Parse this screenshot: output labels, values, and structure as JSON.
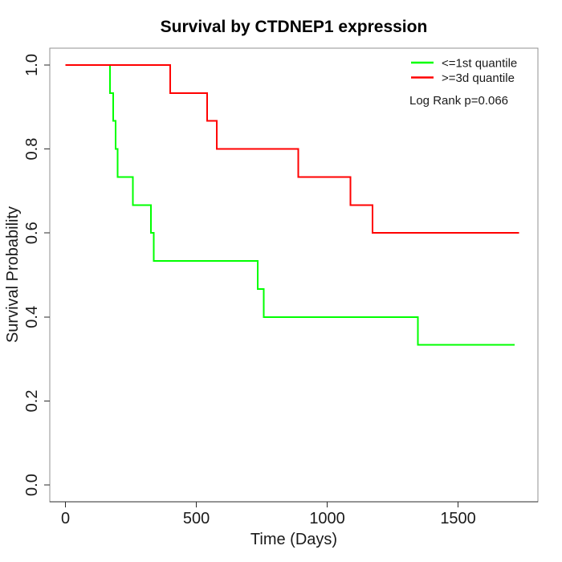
{
  "page": {
    "background": "#FFFFFF"
  },
  "chart_data": {
    "type": "line",
    "subtype": "kaplan_meier_step",
    "title": "Survival by CTDNEP1 expression",
    "xlabel": "Time (Days)",
    "ylabel": "Survival Probability",
    "annotation": "Log Rank p=0.066",
    "legend_position": "top-right",
    "axes": {
      "xticks": [
        0,
        500,
        1000,
        1500
      ],
      "xticklabels": [
        "0",
        "500",
        "1000",
        "1500"
      ],
      "yticks": [
        0.0,
        0.2,
        0.4,
        0.6,
        0.8,
        1.0
      ],
      "yticklabels": [
        "0.0",
        "0.2",
        "0.4",
        "0.6",
        "0.8",
        "1.0"
      ],
      "xlim": [
        0,
        1733
      ],
      "ylim": [
        0,
        1
      ],
      "xlim_display": [
        -60,
        1805
      ],
      "ylim_display": [
        -0.04,
        1.04
      ],
      "grid": false,
      "box_color": "#909090",
      "axis_line_color": "#2a2a2a"
    },
    "series": [
      {
        "name": "<=1st quantile",
        "color": "#00FF00",
        "points": [
          [
            0,
            1.0
          ],
          [
            170,
            0.9333
          ],
          [
            183,
            0.8667
          ],
          [
            191,
            0.8
          ],
          [
            199,
            0.7333
          ],
          [
            257,
            0.6667
          ],
          [
            327,
            0.6
          ],
          [
            337,
            0.5333
          ],
          [
            734,
            0.4667
          ],
          [
            757,
            0.4
          ],
          [
            1347,
            0.3333
          ],
          [
            1716,
            0.3333
          ]
        ]
      },
      {
        "name": ">=3d quantile",
        "color": "#FF0000",
        "points": [
          [
            0,
            1.0
          ],
          [
            400,
            0.9333
          ],
          [
            541,
            0.8667
          ],
          [
            578,
            0.8
          ],
          [
            890,
            0.7333
          ],
          [
            1089,
            0.6667
          ],
          [
            1173,
            0.6
          ],
          [
            1733,
            0.6
          ]
        ]
      }
    ]
  }
}
